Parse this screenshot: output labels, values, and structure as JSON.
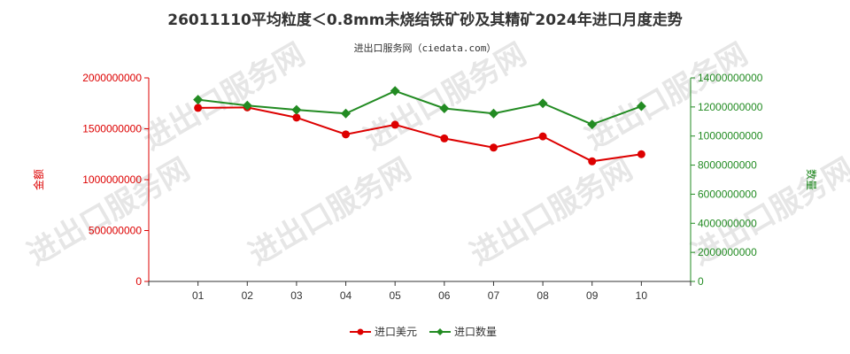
{
  "chart_data": {
    "type": "line",
    "title": "26011110平均粒度＜0.8mm未烧结铁矿砂及其精矿2024年进口月度走势",
    "subtitle": "进出口服务网（ciedata.com）",
    "categories": [
      "01",
      "02",
      "03",
      "04",
      "05",
      "06",
      "07",
      "08",
      "09",
      "10"
    ],
    "y_left": {
      "label": "金额",
      "range": [
        0,
        2000000000
      ],
      "ticks": [
        "0",
        "500000000",
        "1000000000",
        "1500000000",
        "2000000000"
      ],
      "color": "#dd0000"
    },
    "y_right": {
      "label": "数量",
      "range": [
        0,
        14000000000
      ],
      "ticks": [
        "0",
        "2000000000",
        "4000000000",
        "6000000000",
        "8000000000",
        "10000000000",
        "12000000000",
        "14000000000"
      ],
      "color": "#228b22"
    },
    "series": [
      {
        "name": "进口美元",
        "axis": "left",
        "color": "#dd0000",
        "marker": "circle",
        "values": [
          1705000000,
          1710000000,
          1610000000,
          1445000000,
          1540000000,
          1405000000,
          1315000000,
          1425000000,
          1180000000,
          1250000000
        ]
      },
      {
        "name": "进口数量",
        "axis": "right",
        "color": "#228b22",
        "marker": "diamond",
        "values": [
          12500000000,
          12100000000,
          11800000000,
          11550000000,
          13100000000,
          11900000000,
          11550000000,
          12250000000,
          10800000000,
          12050000000
        ]
      }
    ],
    "grid": false,
    "legend_position": "bottom-center"
  },
  "watermark": "进出口服务网"
}
